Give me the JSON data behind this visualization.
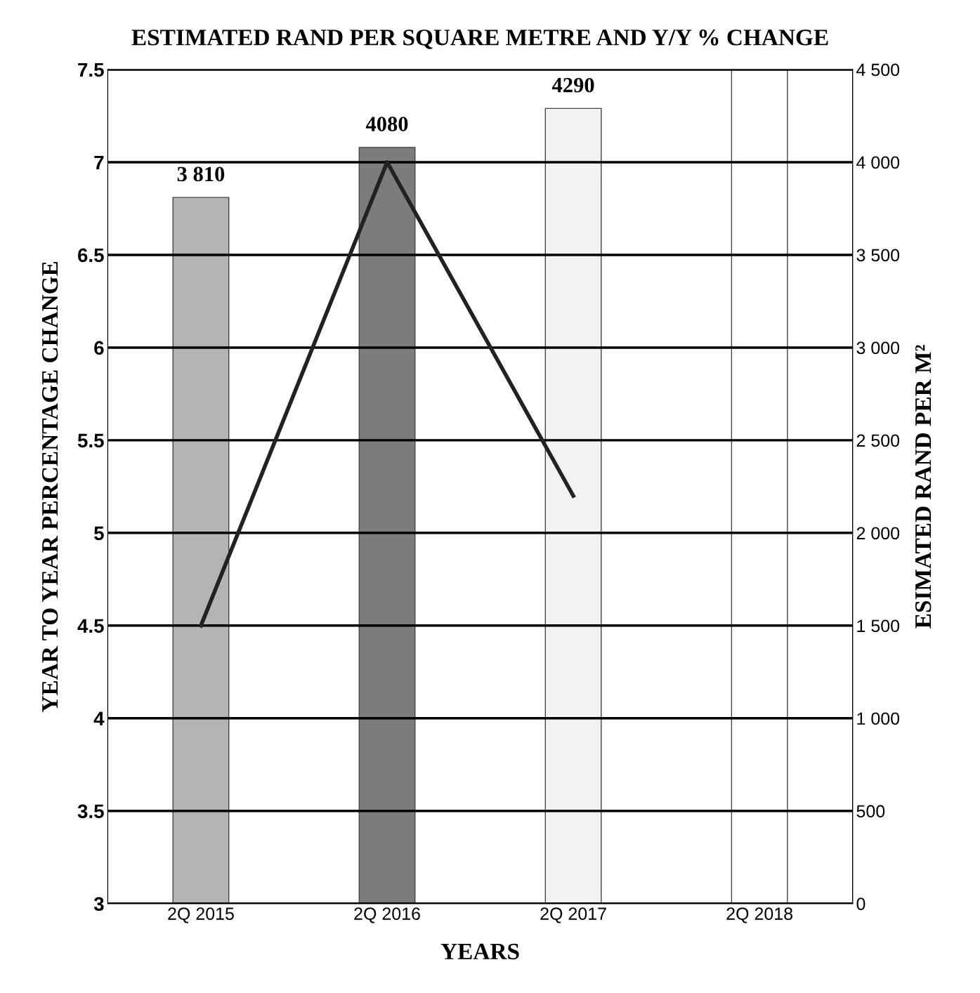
{
  "chart_data": {
    "type": "bar",
    "title": "ESTIMATED RAND PER SQUARE METRE AND Y/Y % CHANGE",
    "xlabel": "YEARS",
    "ylabel": "YEAR TO YEAR PERCENTAGE CHANGE",
    "y2label": "ESIMATED RAND PER M²",
    "categories": [
      "2Q 2015",
      "2Q 2016",
      "2Q 2017",
      "2Q 2018"
    ],
    "series": [
      {
        "axis": "y2",
        "colors": [
          "#b4b4b4",
          "#7c7c7c",
          "#f2f2f2",
          "#ffffff"
        ],
        "values": [
          3810,
          4080,
          4290,
          4500
        ],
        "value_labels": [
          "3 810",
          "4080",
          "4290",
          null
        ]
      },
      {
        "type": "line",
        "axis": "y",
        "color": "#222222",
        "values": [
          4.5,
          7.0,
          5.2,
          null
        ]
      }
    ],
    "ylim": [
      3,
      7.5
    ],
    "yticks": [
      3,
      3.5,
      4,
      4.5,
      5,
      5.5,
      6,
      6.5,
      7,
      7.5
    ],
    "y2lim": [
      0,
      4500
    ],
    "y2ticks": [
      {
        "value": 0,
        "label": "0"
      },
      {
        "value": 500,
        "label": "500"
      },
      {
        "value": 1000,
        "label": "1 000"
      },
      {
        "value": 1500,
        "label": "1 500"
      },
      {
        "value": 2000,
        "label": "2 000"
      },
      {
        "value": 2500,
        "label": "2 500"
      },
      {
        "value": 3000,
        "label": "3 000"
      },
      {
        "value": 3500,
        "label": "3 500"
      },
      {
        "value": 4000,
        "label": "4 000"
      },
      {
        "value": 4500,
        "label": "4 500"
      }
    ],
    "grid": "y",
    "line_style": "solid",
    "marker": "none"
  }
}
